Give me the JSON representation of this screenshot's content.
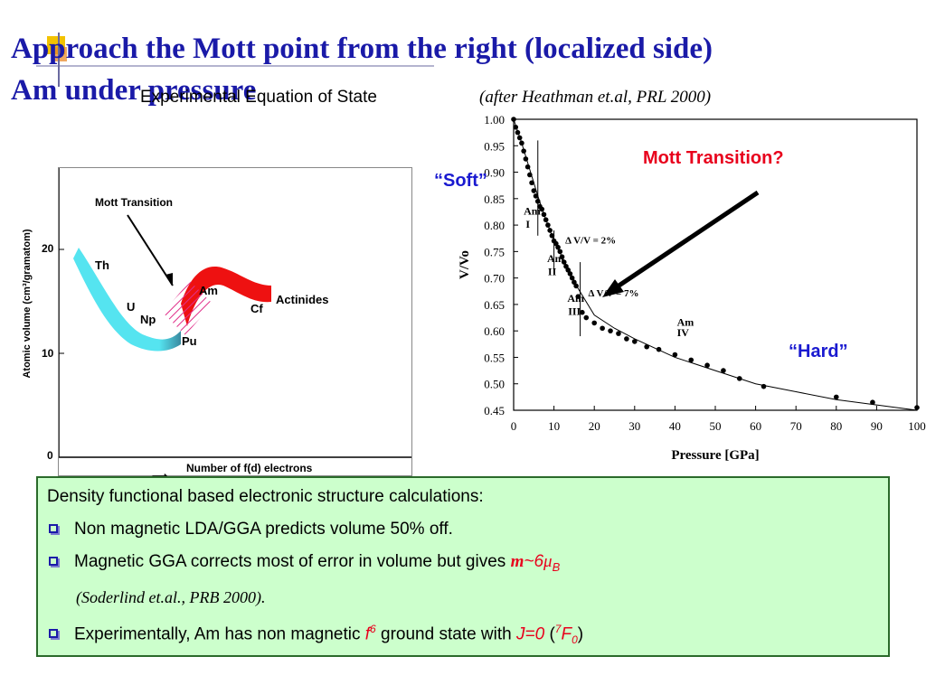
{
  "title": {
    "line1": "Approach the Mott point from the right (localized side)",
    "line2": "Am under pressure"
  },
  "subtitle": "Experimental Equation of State",
  "citation": "(after Heathman et.al, PRL 2000)",
  "labels": {
    "mott_question": "Mott Transition?",
    "soft": "“Soft”",
    "hard": "“Hard”"
  },
  "left_figure": {
    "ylabel": "Atomic volume (cm³/gramatom)",
    "xlabel": "Number of f(d) electrons",
    "yticks": [
      "20",
      "10",
      "0"
    ],
    "annotation": "Mott Transition",
    "elements": [
      "Th",
      "U",
      "Np",
      "Pu",
      "Am",
      "Cf",
      "Actinides"
    ],
    "colors": {
      "delocalized": "#55e4f0",
      "localized": "#ee1111",
      "hatch": "#e0308a"
    }
  },
  "chart_data": {
    "type": "scatter",
    "xlabel": "Pressure [GPa]",
    "ylabel": "V/Vo",
    "xlim": [
      0,
      100
    ],
    "ylim": [
      0.45,
      1.0
    ],
    "xticks": [
      0,
      10,
      20,
      30,
      40,
      50,
      60,
      70,
      80,
      90,
      100
    ],
    "yticks": [
      "0.45",
      "0.50",
      "0.55",
      "0.60",
      "0.65",
      "0.70",
      "0.75",
      "0.80",
      "0.85",
      "0.90",
      "0.95",
      "1.00"
    ],
    "series": [
      {
        "x": [
          0,
          0.5,
          1,
          1.5,
          2,
          2.5,
          3,
          3.5,
          4,
          4.5,
          5,
          5.5,
          6,
          6.5,
          7,
          7.5,
          8,
          8.5,
          9,
          9.5,
          10,
          10.5,
          11,
          11.5,
          12,
          12.5,
          13,
          13.5,
          14,
          14.5,
          15,
          15.5,
          16,
          17,
          18,
          20,
          22,
          24,
          26,
          28,
          30,
          33,
          36,
          40,
          44,
          48,
          52,
          56,
          62,
          80,
          89,
          100
        ],
        "y": [
          1.0,
          0.985,
          0.975,
          0.965,
          0.955,
          0.94,
          0.925,
          0.91,
          0.895,
          0.88,
          0.865,
          0.855,
          0.845,
          0.835,
          0.83,
          0.82,
          0.81,
          0.8,
          0.79,
          0.78,
          0.77,
          0.765,
          0.758,
          0.75,
          0.74,
          0.73,
          0.722,
          0.715,
          0.708,
          0.7,
          0.692,
          0.685,
          0.665,
          0.635,
          0.625,
          0.615,
          0.605,
          0.6,
          0.595,
          0.585,
          0.58,
          0.57,
          0.565,
          0.555,
          0.545,
          0.535,
          0.525,
          0.51,
          0.495,
          0.475,
          0.465,
          0.455
        ]
      }
    ],
    "fit_curve": {
      "x": [
        0,
        2,
        4,
        6,
        8,
        10,
        12,
        14,
        16,
        20,
        25,
        30,
        40,
        50,
        60,
        70,
        80,
        90,
        100
      ],
      "y": [
        1.0,
        0.955,
        0.905,
        0.855,
        0.81,
        0.77,
        0.74,
        0.71,
        0.68,
        0.63,
        0.605,
        0.585,
        0.55,
        0.525,
        0.5,
        0.485,
        0.47,
        0.46,
        0.45
      ]
    },
    "phase_lines": [
      {
        "x": 6,
        "y_top": 0.96,
        "y_bottom": 0.78
      },
      {
        "x": 10,
        "y_top": 0.79,
        "y_bottom": 0.71
      },
      {
        "x": 16.5,
        "y_top": 0.73,
        "y_bottom": 0.59
      }
    ],
    "annotations": [
      {
        "text": "Am",
        "x": 2.5,
        "y": 0.82
      },
      {
        "text": "I",
        "x": 3.0,
        "y": 0.795
      },
      {
        "text": "Am",
        "x": 8.3,
        "y": 0.73
      },
      {
        "text": "II",
        "x": 8.5,
        "y": 0.705
      },
      {
        "text": "Am",
        "x": 13.3,
        "y": 0.655
      },
      {
        "text": "III",
        "x": 13.5,
        "y": 0.63
      },
      {
        "text": "Am",
        "x": 40.5,
        "y": 0.61
      },
      {
        "text": "IV",
        "x": 40.5,
        "y": 0.59
      },
      {
        "text": "Δ V/V = 2%",
        "x": 12.8,
        "y": 0.765
      },
      {
        "text": "Δ V/V = 7%",
        "x": 18.5,
        "y": 0.665
      }
    ],
    "colors": {
      "points": "#000000",
      "line": "#000000"
    }
  },
  "summary": {
    "intro": "Density functional based electronic structure calculations:",
    "b1": "Non magnetic LDA/GGA predicts volume 50% off.",
    "b2_text": "Magnetic GGA corrects most of error in volume but gives",
    "b2_m": "m",
    "b2_val": "~6",
    "b2_mu": "μ",
    "b2_sub": "B",
    "b2_cite": "(Soderlind et.al., PRB 2000).",
    "b3_text": "Experimentally, Am has non magnetic",
    "b3_f": "f",
    "b3_fsup": "6",
    "b3_mid": "ground state with",
    "b3_j": "J=0",
    "b3_paren_open": "(",
    "b3_sup7": "7",
    "b3_F": "F",
    "b3_sub0": "0",
    "b3_paren_close": ")"
  }
}
